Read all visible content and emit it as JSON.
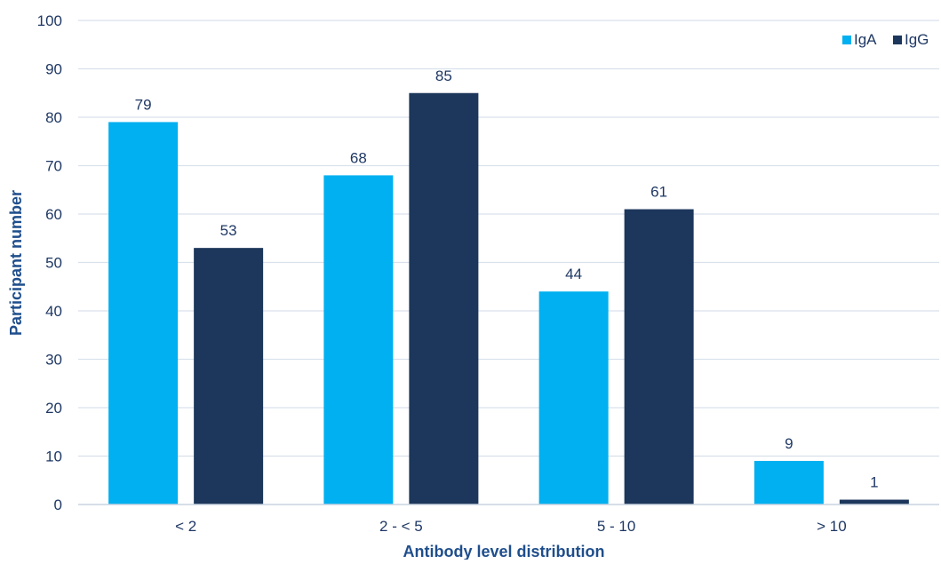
{
  "chart_data": {
    "type": "bar",
    "title": "",
    "xlabel": "Antibody level distribution",
    "ylabel": "Participant number",
    "categories": [
      "< 2",
      "2 - < 5",
      "5 - 10",
      "> 10"
    ],
    "series": [
      {
        "name": "IgA",
        "values": [
          79,
          68,
          44,
          9
        ],
        "color": "#00b0f0"
      },
      {
        "name": "IgG",
        "values": [
          53,
          85,
          61,
          1
        ],
        "color": "#1c375b"
      }
    ],
    "ylim": [
      0,
      100
    ],
    "yticks": [
      0,
      10,
      20,
      30,
      40,
      50,
      60,
      70,
      80,
      90,
      100
    ],
    "grid": true,
    "legend_position": "top-right",
    "data_labels": true
  },
  "colors": {
    "axis_text": "#1f3864",
    "grid": "#d9e1ec",
    "title_text": "#1f4e8c"
  }
}
